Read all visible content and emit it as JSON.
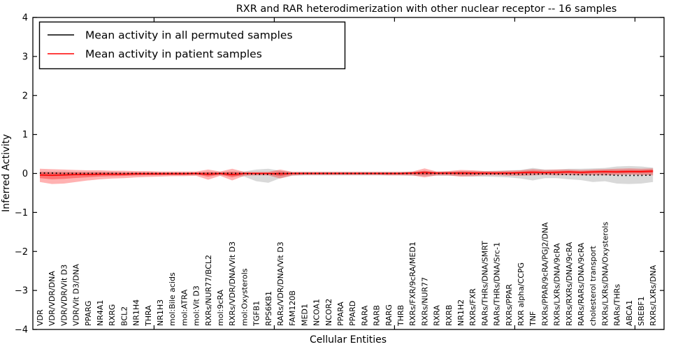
{
  "chart_data": {
    "type": "line",
    "title": "RXR and RAR heterodimerization with other nuclear receptor -- 16 samples",
    "xlabel": "Cellular Entities",
    "ylabel": "Inferred Activity",
    "ylim": [
      -4,
      4
    ],
    "yticks": [
      -4,
      -3,
      -2,
      -1,
      0,
      1,
      2,
      3,
      4
    ],
    "ytick_labels": [
      "−4",
      "−3",
      "−2",
      "−1",
      "0",
      "1",
      "2",
      "3",
      "4"
    ],
    "grid": false,
    "legend_position": "upper left",
    "categories": [
      "VDR",
      "VDR/VDR/DNA",
      "VDR/VDR/Vit D3",
      "VDR/Vit D3/DNA",
      "PPARG",
      "NR4A1",
      "RXRG",
      "BCL2",
      "NR1H4",
      "THRA",
      "NR1H3",
      "mol:Bile acids",
      "mol:ATRA",
      "mol:Vit D3",
      "RXRs/NUR77/BCL2",
      "mol:9cRA",
      "RXRs/VDR/DNA/Vit D3",
      "mol:Oxysterols",
      "TGFB1",
      "RPS6KB1",
      "RARs/VDR/DNA/Vit D3",
      "FAM120B",
      "MED1",
      "NCOA1",
      "NCOR2",
      "PPARA",
      "PPARD",
      "RARA",
      "RARB",
      "RARG",
      "THRB",
      "RXRs/FXR/9cRA/MED1",
      "RXRs/NUR77",
      "RXRA",
      "RXRB",
      "NR1H2",
      "RXRs/FXR",
      "RARs/THRs/DNA/SMRT",
      "RARs/THRs/DNA/Src-1",
      "RXRs/PPAR",
      "RXR alpha/CCPG",
      "TNF",
      "RXRs/PPAR/9cRA/PGJ2/DNA",
      "RXRs/LXRs/DNA/9cRA",
      "RXRs/RXRs/DNA/9cRA",
      "RARs/RARs/DNA/9cRA",
      "cholesterol transport",
      "RXRs/LXRs/DNA/Oxysterols",
      "RARs/THRs",
      "ABCA1",
      "SREBF1",
      "RXRs/LXRs/DNA"
    ],
    "series": [
      {
        "name": "Mean activity in all permuted samples",
        "color": "#000000",
        "style": "dotted",
        "values": [
          0.01,
          0.01,
          0,
          0,
          0,
          0,
          0,
          0,
          0,
          0,
          0,
          0,
          0,
          0,
          0,
          0,
          0,
          0,
          -0.02,
          -0.02,
          0,
          0,
          0,
          0,
          0,
          0,
          0,
          0,
          0,
          0,
          0,
          0,
          0,
          0,
          0,
          0,
          -0.01,
          -0.01,
          -0.01,
          -0.01,
          -0.02,
          -0.02,
          -0.01,
          -0.02,
          -0.03,
          -0.03,
          -0.04,
          -0.03,
          -0.05,
          -0.05,
          -0.05,
          -0.04
        ]
      },
      {
        "name": "Mean activity in patient samples",
        "color": "#ff0000",
        "style": "solid",
        "values": [
          -0.04,
          -0.05,
          -0.04,
          -0.03,
          -0.03,
          -0.02,
          -0.02,
          -0.02,
          -0.01,
          -0.01,
          -0.01,
          -0.01,
          -0.01,
          0,
          -0.02,
          0,
          -0.03,
          0,
          0,
          0,
          -0.01,
          0,
          0,
          0,
          0,
          0,
          0,
          0,
          0,
          0,
          0,
          0.01,
          0.02,
          0.01,
          0.01,
          0.01,
          0.01,
          0.01,
          0.01,
          0.01,
          0.02,
          0.03,
          0.02,
          0.03,
          0.04,
          0.03,
          0.04,
          0.05,
          0.04,
          0.05,
          0.05,
          0.06
        ]
      }
    ],
    "bands": [
      {
        "name": "permuted-samples-band",
        "color": "#888888",
        "opacity": 0.32,
        "lower": [
          -0.06,
          -0.07,
          -0.06,
          -0.05,
          -0.05,
          -0.04,
          -0.04,
          -0.04,
          -0.04,
          -0.04,
          -0.04,
          -0.04,
          -0.04,
          -0.04,
          -0.05,
          -0.05,
          -0.06,
          -0.08,
          -0.2,
          -0.24,
          -0.12,
          -0.06,
          -0.05,
          -0.05,
          -0.05,
          -0.05,
          -0.05,
          -0.05,
          -0.05,
          -0.05,
          -0.05,
          -0.06,
          -0.07,
          -0.06,
          -0.06,
          -0.07,
          -0.08,
          -0.08,
          -0.09,
          -0.1,
          -0.13,
          -0.18,
          -0.12,
          -0.12,
          -0.15,
          -0.17,
          -0.22,
          -0.2,
          -0.26,
          -0.27,
          -0.26,
          -0.22
        ],
        "upper": [
          0.05,
          0.05,
          0.05,
          0.04,
          0.04,
          0.04,
          0.04,
          0.03,
          0.03,
          0.03,
          0.03,
          0.03,
          0.03,
          0.03,
          0.04,
          0.04,
          0.05,
          0.05,
          0.1,
          0.12,
          0.07,
          0.04,
          0.04,
          0.04,
          0.04,
          0.04,
          0.04,
          0.04,
          0.04,
          0.04,
          0.04,
          0.05,
          0.06,
          0.05,
          0.05,
          0.06,
          0.06,
          0.06,
          0.07,
          0.08,
          0.09,
          0.14,
          0.1,
          0.1,
          0.12,
          0.12,
          0.13,
          0.14,
          0.18,
          0.19,
          0.18,
          0.15
        ]
      },
      {
        "name": "patient-samples-band",
        "color": "#ff0000",
        "opacity": 0.3,
        "lower": [
          -0.22,
          -0.27,
          -0.26,
          -0.22,
          -0.18,
          -0.15,
          -0.13,
          -0.12,
          -0.1,
          -0.09,
          -0.08,
          -0.07,
          -0.07,
          -0.06,
          -0.16,
          -0.06,
          -0.18,
          -0.06,
          -0.05,
          -0.05,
          -0.13,
          -0.05,
          -0.04,
          -0.04,
          -0.04,
          -0.04,
          -0.04,
          -0.04,
          -0.04,
          -0.05,
          -0.05,
          -0.05,
          -0.1,
          -0.05,
          -0.05,
          -0.08,
          -0.07,
          -0.05,
          -0.05,
          -0.06,
          -0.06,
          -0.05,
          -0.04,
          -0.05,
          -0.04,
          -0.05,
          -0.04,
          -0.05,
          -0.04,
          -0.03,
          -0.04,
          -0.05
        ],
        "upper": [
          0.12,
          0.11,
          0.1,
          0.09,
          0.08,
          0.08,
          0.07,
          0.07,
          0.06,
          0.06,
          0.05,
          0.05,
          0.05,
          0.05,
          0.1,
          0.05,
          0.12,
          0.04,
          0.04,
          0.04,
          0.1,
          0.04,
          0.04,
          0.04,
          0.04,
          0.04,
          0.04,
          0.04,
          0.04,
          0.04,
          0.04,
          0.05,
          0.13,
          0.05,
          0.06,
          0.09,
          0.08,
          0.06,
          0.06,
          0.07,
          0.08,
          0.11,
          0.09,
          0.1,
          0.1,
          0.09,
          0.1,
          0.11,
          0.12,
          0.13,
          0.12,
          0.13
        ]
      }
    ],
    "legend": {
      "items": [
        {
          "label": "Mean activity in all permuted samples",
          "color": "#000000"
        },
        {
          "label": "Mean activity in patient samples",
          "color": "#ff0000"
        }
      ]
    }
  }
}
